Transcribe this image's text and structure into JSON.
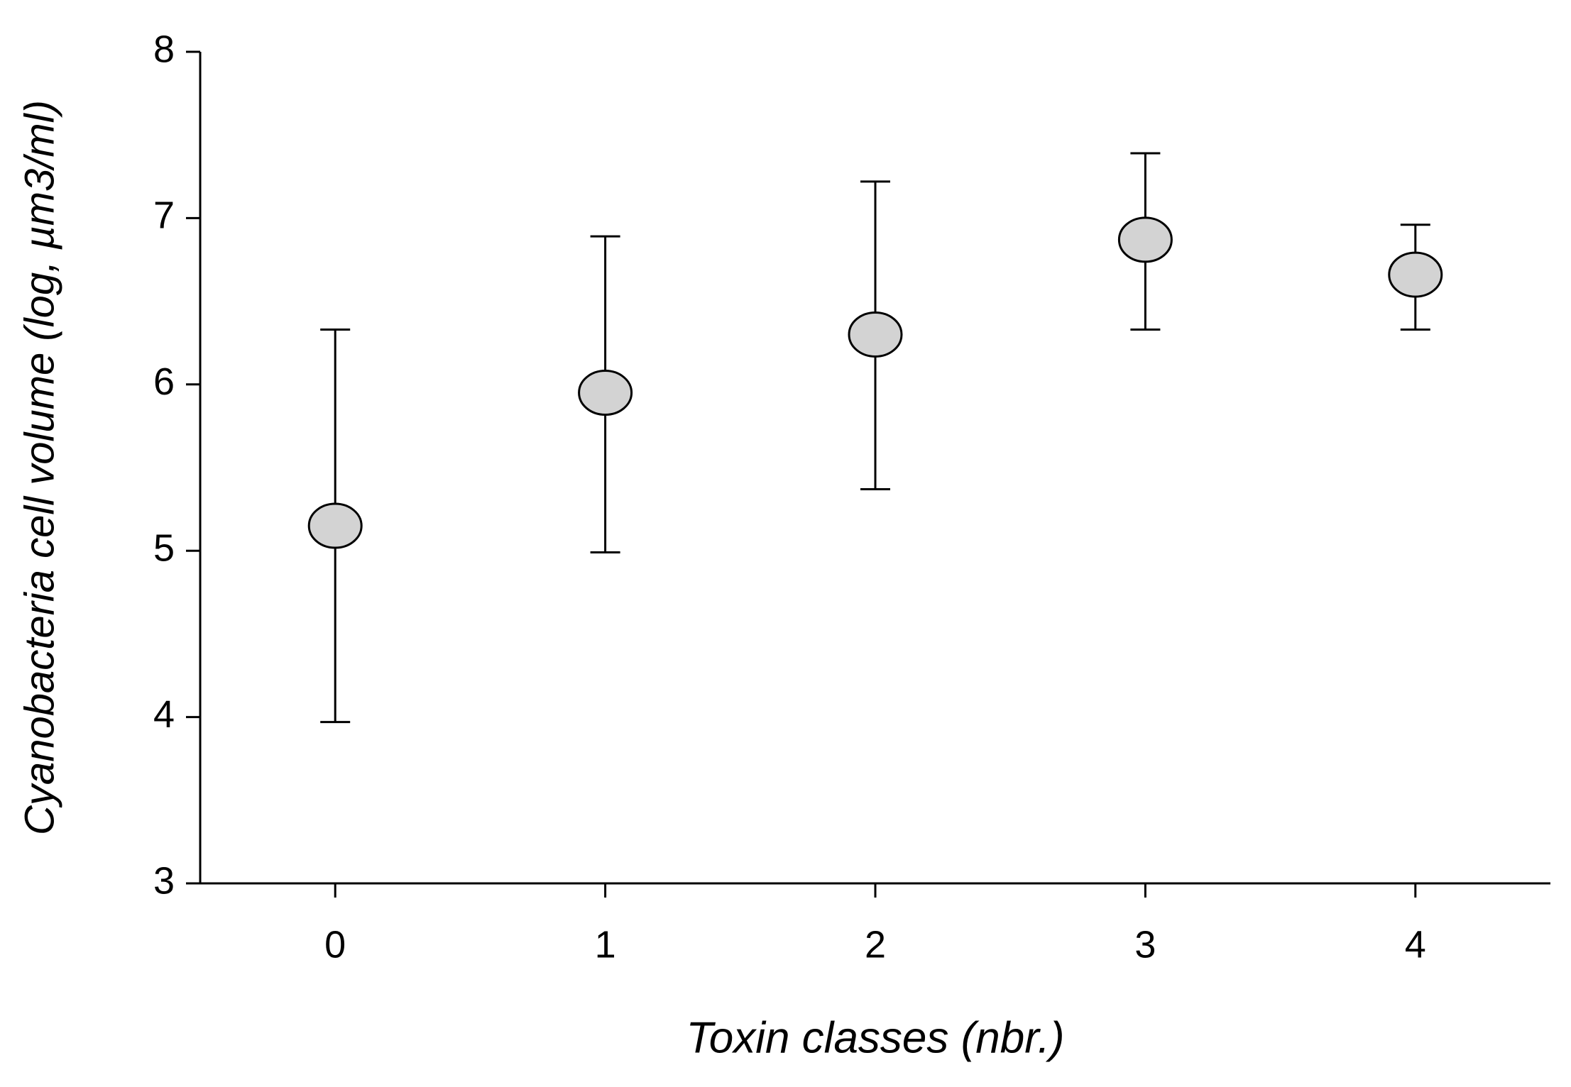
{
  "chart_data": {
    "type": "scatter",
    "x_label": "Toxin  classes  (nbr.)",
    "y_label": "Cyanobacteria cell volume (log, µm3/ml)",
    "x": [
      0,
      1,
      2,
      3,
      4
    ],
    "values": [
      5.15,
      5.95,
      6.3,
      6.87,
      6.66
    ],
    "y_low": [
      3.97,
      4.99,
      5.37,
      6.33,
      6.33
    ],
    "y_high": [
      6.33,
      6.89,
      7.22,
      7.39,
      6.96
    ],
    "color": "#d3d3d3",
    "xlim": [
      -0.5,
      4.5
    ],
    "xticks": [
      0,
      1,
      2,
      3,
      4
    ],
    "ylim": [
      3,
      8
    ],
    "yticks": [
      3,
      4,
      5,
      6,
      7,
      8
    ]
  }
}
